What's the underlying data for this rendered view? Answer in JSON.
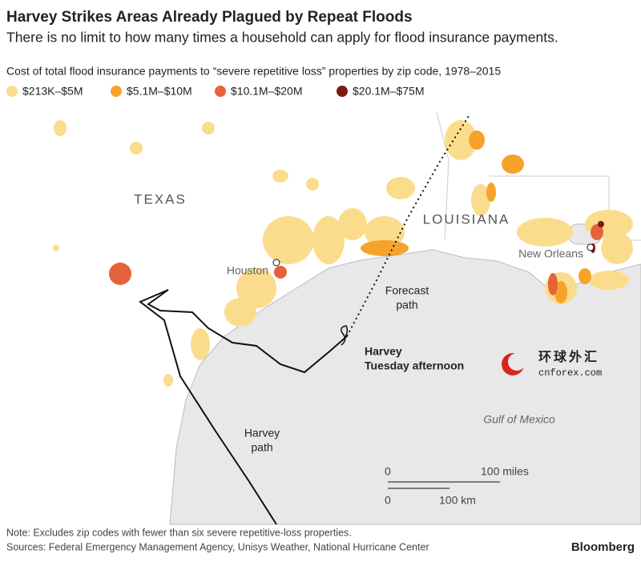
{
  "header": {
    "title": "Harvey Strikes Areas Already Plagued by Repeat Floods",
    "subtitle": "There is no limit to how many times a household can apply for flood insurance payments.",
    "description": "Cost of total flood insurance payments to “severe repetitive loss” properties by zip code, 1978–2015"
  },
  "legend": [
    {
      "label": "$213K–$5M",
      "color": "#fbdc8c"
    },
    {
      "label": "$5.1M–$10M",
      "color": "#f6a32b"
    },
    {
      "label": "$10.1M–$20M",
      "color": "#e6623a"
    },
    {
      "label": "$20.1M–$75M",
      "color": "#7b1a14"
    }
  ],
  "map": {
    "states": [
      "TEXAS",
      "LOUISIANA"
    ],
    "cities": [
      "Houston",
      "New Orleans"
    ],
    "forecast_label": [
      "Forecast",
      "path"
    ],
    "storm_label": [
      "Harvey",
      "Tuesday afternoon"
    ],
    "gulf": "Gulf of Mexico",
    "path_label": [
      "Harvey",
      "path"
    ],
    "scale": {
      "miles_zero": "0",
      "miles": "100 miles",
      "km_zero": "0",
      "km": "100 km"
    },
    "watermark": {
      "cn": "环球外汇",
      "site": "cnforex.com"
    }
  },
  "footer": {
    "note": "Note: Excludes zip codes with fewer than six severe repetitive-loss properties.",
    "sources": "Sources: Federal Emergency Management Agency, Unisys Weather, National Hurricane Center",
    "brand": "Bloomberg"
  }
}
